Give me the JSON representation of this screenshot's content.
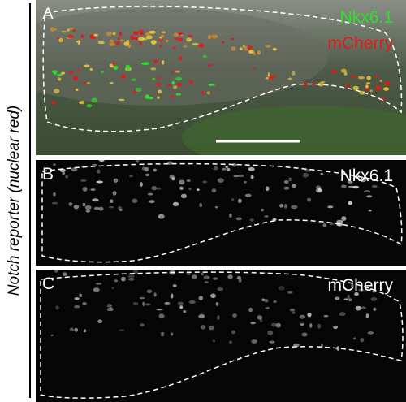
{
  "side_label": "Notch reporter (nuclear red)",
  "panels": [
    {
      "letter": "A",
      "labels": [
        "Nkx6.1",
        "mCherry"
      ]
    },
    {
      "letter": "B",
      "labels": [
        "Nkx6.1"
      ]
    },
    {
      "letter": "C",
      "labels": [
        "mCherry"
      ]
    }
  ],
  "colors": {
    "nkx61": "#2ee02e",
    "mcherry": "#e21a1a",
    "merged": "#e6c23a",
    "outline": "#ffffff"
  }
}
